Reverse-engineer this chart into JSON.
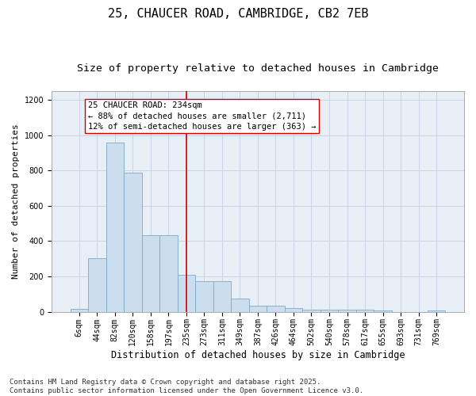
{
  "title": "25, CHAUCER ROAD, CAMBRIDGE, CB2 7EB",
  "subtitle": "Size of property relative to detached houses in Cambridge",
  "xlabel": "Distribution of detached houses by size in Cambridge",
  "ylabel": "Number of detached properties",
  "categories": [
    "6sqm",
    "44sqm",
    "82sqm",
    "120sqm",
    "158sqm",
    "197sqm",
    "235sqm",
    "273sqm",
    "311sqm",
    "349sqm",
    "387sqm",
    "426sqm",
    "464sqm",
    "502sqm",
    "540sqm",
    "578sqm",
    "617sqm",
    "655sqm",
    "693sqm",
    "731sqm",
    "769sqm"
  ],
  "values": [
    15,
    305,
    960,
    790,
    432,
    432,
    210,
    175,
    175,
    75,
    35,
    35,
    20,
    10,
    10,
    10,
    10,
    5,
    0,
    0,
    5
  ],
  "bar_color": "#ccdded",
  "bar_edge_color": "#7aaac8",
  "red_line_index": 6,
  "red_line_color": "#cc0000",
  "annotation_text": "25 CHAUCER ROAD: 234sqm\n← 88% of detached houses are smaller (2,711)\n12% of semi-detached houses are larger (363) →",
  "annotation_box_color": "#ffffff",
  "annotation_box_edge": "#cc0000",
  "ylim": [
    0,
    1250
  ],
  "yticks": [
    0,
    200,
    400,
    600,
    800,
    1000,
    1200
  ],
  "grid_color": "#c8d4e4",
  "background_color": "#e8eef6",
  "footer_line1": "Contains HM Land Registry data © Crown copyright and database right 2025.",
  "footer_line2": "Contains public sector information licensed under the Open Government Licence v3.0.",
  "title_fontsize": 11,
  "subtitle_fontsize": 9.5,
  "xlabel_fontsize": 8.5,
  "ylabel_fontsize": 8,
  "tick_fontsize": 7,
  "annotation_fontsize": 7.5,
  "footer_fontsize": 6.5
}
